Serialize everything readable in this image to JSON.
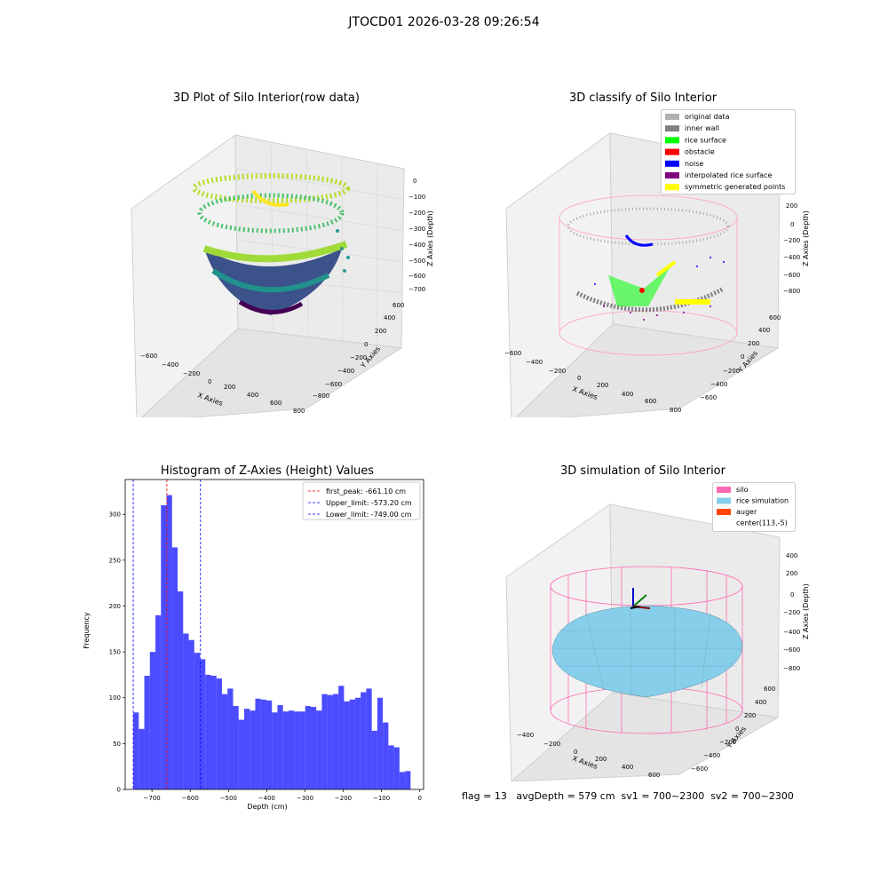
{
  "figure": {
    "suptitle": "JTOCD01 2026-03-28 09:26:54",
    "footer": "flag = 13   avgDepth = 579 cm  sv1 = 700~2300  sv2 = 700~2300"
  },
  "plot_raw": {
    "title": "3D Plot of Silo Interior(row data)",
    "xlabel": "X Axies",
    "ylabel": "Y Axies",
    "zlabel": "Z Axies (Depth)",
    "x_ticks": [
      "−600",
      "−400",
      "−200",
      "0",
      "200",
      "400",
      "600",
      "800"
    ],
    "y_ticks": [
      "−800",
      "−600",
      "−400",
      "−200",
      "0",
      "200",
      "400",
      "600"
    ],
    "z_ticks": [
      "0",
      "−100",
      "−200",
      "−300",
      "−400",
      "−500",
      "−600",
      "−700"
    ]
  },
  "plot_classify": {
    "title": "3D classify of Silo Interior",
    "xlabel": "X Axies",
    "ylabel": "Y Axies",
    "zlabel": "Z Axies (Depth)",
    "x_ticks": [
      "−600",
      "−400",
      "−200",
      "0",
      "200",
      "400",
      "600",
      "800"
    ],
    "y_ticks": [
      "−600",
      "−400",
      "−200",
      "0",
      "200",
      "400",
      "600"
    ],
    "z_ticks": [
      "200",
      "0",
      "−200",
      "−400",
      "−600",
      "−800"
    ],
    "legend": [
      {
        "label": "original data",
        "color": "#b0b0b0"
      },
      {
        "label": "inner wall",
        "color": "#808080"
      },
      {
        "label": "rice surface",
        "color": "#00ff00"
      },
      {
        "label": "obstacle",
        "color": "#ff0000"
      },
      {
        "label": "noise",
        "color": "#0000ff"
      },
      {
        "label": "interpolated rice surface",
        "color": "#800080"
      },
      {
        "label": "symmetric generated points",
        "color": "#ffff00"
      }
    ]
  },
  "plot_sim": {
    "title": "3D simulation of Silo Interior",
    "xlabel": "X Axies",
    "ylabel": "Y Axies",
    "zlabel": "Z Axies (Depth)",
    "x_ticks": [
      "−400",
      "−200",
      "0",
      "200",
      "400",
      "600"
    ],
    "y_ticks": [
      "−600",
      "−400",
      "−200",
      "0",
      "200",
      "400",
      "600"
    ],
    "z_ticks": [
      "400",
      "200",
      "0",
      "−200",
      "−400",
      "−600",
      "−800"
    ],
    "legend": [
      {
        "label": "silo",
        "color": "#ff69b4"
      },
      {
        "label": "rice simulation",
        "color": "#87ceeb"
      },
      {
        "label": "auger",
        "color": "#ff4500"
      },
      {
        "label": "center(113,-5)",
        "color": ""
      }
    ]
  },
  "chart_data": {
    "type": "bar",
    "title": "Histogram of Z-Axies (Height) Values",
    "xlabel": "Depth (cm)",
    "ylabel": "Frequency",
    "xlim": [
      -770,
      10
    ],
    "ylim": [
      0,
      338
    ],
    "bin_start": -749,
    "bin_width": 14.5,
    "values": [
      84,
      66,
      124,
      150,
      190,
      310,
      321,
      264,
      216,
      170,
      163,
      149,
      142,
      125,
      124,
      121,
      104,
      110,
      91,
      76,
      88,
      86,
      99,
      98,
      97,
      84,
      92,
      85,
      86,
      85,
      85,
      91,
      90,
      86,
      104,
      103,
      104,
      113,
      96,
      98,
      100,
      106,
      110,
      64,
      100,
      73,
      48,
      46,
      19,
      20
    ],
    "xticks": [
      -700,
      -600,
      -500,
      -400,
      -300,
      -200,
      -100,
      0
    ],
    "xtick_labels": [
      "−700",
      "−600",
      "−500",
      "−400",
      "−300",
      "−200",
      "−100",
      "0"
    ],
    "yticks": [
      0,
      50,
      100,
      150,
      200,
      250,
      300
    ],
    "yticklabels": [
      "0",
      "50",
      "100",
      "150",
      "200",
      "250",
      "300"
    ],
    "bar_color": "#0000ff",
    "vlines": [
      {
        "x": -661.1,
        "color": "#ff0000",
        "label": "first_peak: -661.10 cm"
      },
      {
        "x": -573.2,
        "color": "#0000ff",
        "label": "Upper_limit: -573.20 cm"
      },
      {
        "x": -749.0,
        "color": "#0000ff",
        "label": "Lower_limit: -749.00 cm"
      }
    ]
  }
}
